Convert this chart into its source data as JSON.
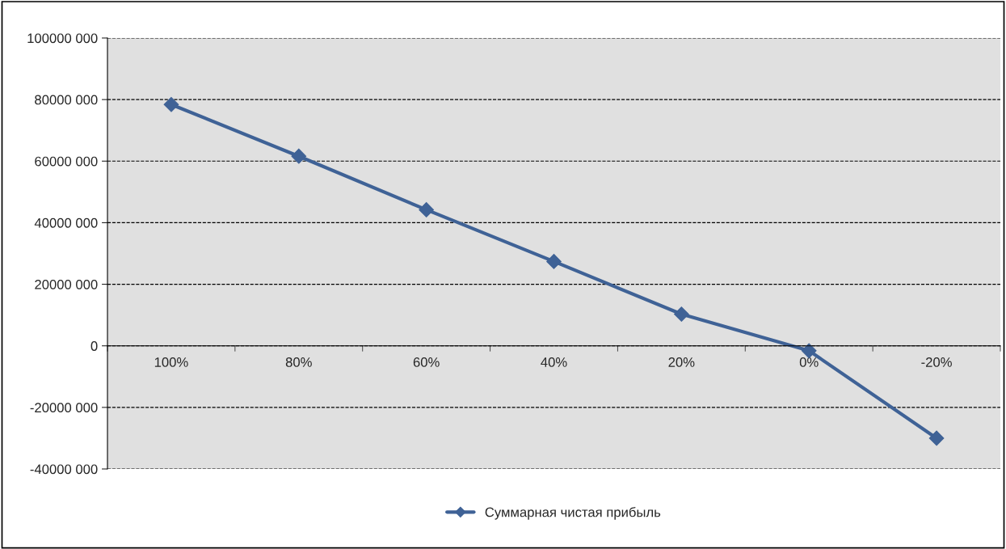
{
  "chart_data": {
    "type": "line",
    "categories": [
      "100%",
      "80%",
      "60%",
      "40%",
      "20%",
      "0%",
      "-20%"
    ],
    "series": [
      {
        "name": "Суммарная чистая прибыль",
        "color": "#3f6296",
        "values": [
          78400000,
          61600000,
          44200000,
          27400000,
          10300000,
          -1600000,
          -30000000
        ]
      }
    ],
    "ylim": [
      -40000000,
      100000000
    ],
    "yticks": [
      {
        "value": -40000000,
        "label": "-40000 000"
      },
      {
        "value": -20000000,
        "label": "-20000 000"
      },
      {
        "value": 0,
        "label": "0"
      },
      {
        "value": 20000000,
        "label": "20000 000"
      },
      {
        "value": 40000000,
        "label": "40000 000"
      },
      {
        "value": 60000000,
        "label": "60000 000"
      },
      {
        "value": 80000000,
        "label": "80000 000"
      },
      {
        "value": 100000000,
        "label": "100000 000"
      }
    ],
    "grid": "y",
    "legend": "bottom",
    "marker": "diamond",
    "line_style": "solid"
  }
}
